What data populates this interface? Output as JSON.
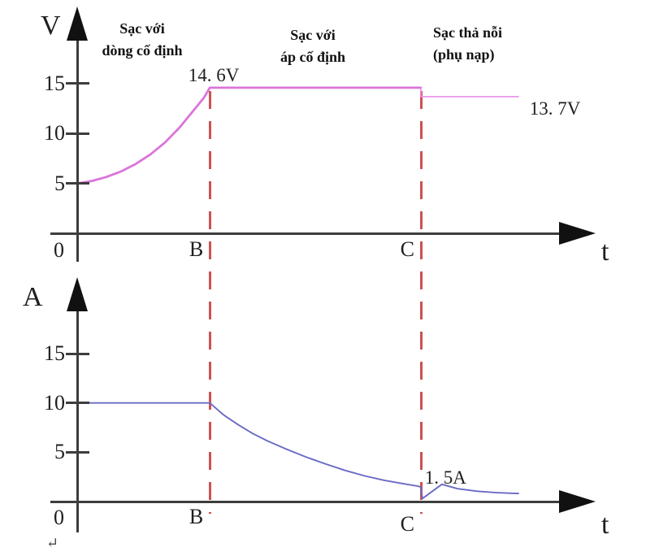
{
  "colors": {
    "voltage_line": "#db74db",
    "float_line": "#e98fe9",
    "current_line": "#6a6ac6",
    "phase_boundary_dash": "#cc5151",
    "axis": "#3d3d3d",
    "text": "#1f1f1f"
  },
  "stray_return_mark": "↵",
  "chart_data": [
    {
      "type": "line",
      "ylabel": "V",
      "xlabel": "t",
      "origin_label": "0",
      "yticks": [
        15,
        10,
        5
      ],
      "ylim": [
        0,
        17
      ],
      "grid": false,
      "phase_labels": [
        {
          "line1": "Sạc với",
          "line2": "dòng cố định"
        },
        {
          "line1": "Sạc với",
          "line2": "áp cố định"
        },
        {
          "line1": "Sạc thả nỗi",
          "line2": "(phụ nạp)"
        }
      ],
      "x_markers": [
        {
          "label": "B",
          "t": 0.272
        },
        {
          "label": "C",
          "t": 0.705
        }
      ],
      "series": [
        {
          "name": "charging-voltage",
          "color": "#db74db",
          "width": 2.8,
          "points": [
            [
              0,
              5
            ],
            [
              0.03,
              5.25
            ],
            [
              0.06,
              5.65
            ],
            [
              0.09,
              6.2
            ],
            [
              0.12,
              6.95
            ],
            [
              0.15,
              7.9
            ],
            [
              0.18,
              9.1
            ],
            [
              0.21,
              10.6
            ],
            [
              0.24,
              12.4
            ],
            [
              0.26,
              13.6
            ],
            [
              0.272,
              14.6
            ],
            [
              0.705,
              14.6
            ]
          ]
        },
        {
          "name": "float-voltage",
          "color": "#e98fe9",
          "width": 1.6,
          "points": [
            [
              0.705,
              14.6
            ],
            [
              0.705,
              13.7
            ],
            [
              0.905,
              13.7
            ]
          ]
        }
      ],
      "annotations": [
        {
          "text": "14. 6V",
          "t": 0.228,
          "value": 15.8
        },
        {
          "text": "13. 7V",
          "t": 0.928,
          "value": 12.5
        }
      ]
    },
    {
      "type": "line",
      "ylabel": "A",
      "xlabel": "t",
      "origin_label": "0",
      "yticks": [
        15,
        10,
        5
      ],
      "ylim": [
        0,
        17
      ],
      "grid": false,
      "x_markers": [
        {
          "label": "B",
          "t": 0.272
        },
        {
          "label": "C",
          "t": 0.705
        }
      ],
      "series": [
        {
          "name": "charging-current",
          "color": "#6a6ac6",
          "width": 1.9,
          "points": [
            [
              0,
              10
            ],
            [
              0.272,
              10
            ],
            [
              0.3,
              8.8
            ],
            [
              0.33,
              7.8
            ],
            [
              0.36,
              6.9
            ],
            [
              0.39,
              6.15
            ],
            [
              0.43,
              5.3
            ],
            [
              0.47,
              4.5
            ],
            [
              0.51,
              3.8
            ],
            [
              0.55,
              3.15
            ],
            [
              0.59,
              2.6
            ],
            [
              0.63,
              2.15
            ],
            [
              0.67,
              1.8
            ],
            [
              0.7,
              1.55
            ],
            [
              0.705,
              1.45
            ],
            [
              0.708,
              0.3
            ],
            [
              0.715,
              0.55
            ],
            [
              0.748,
              1.75
            ],
            [
              0.78,
              1.3
            ],
            [
              0.82,
              1.05
            ],
            [
              0.86,
              0.9
            ],
            [
              0.905,
              0.82
            ]
          ]
        }
      ],
      "annotations": [
        {
          "text": "1. 5A",
          "t": 0.713,
          "value": 2.35
        }
      ]
    }
  ]
}
